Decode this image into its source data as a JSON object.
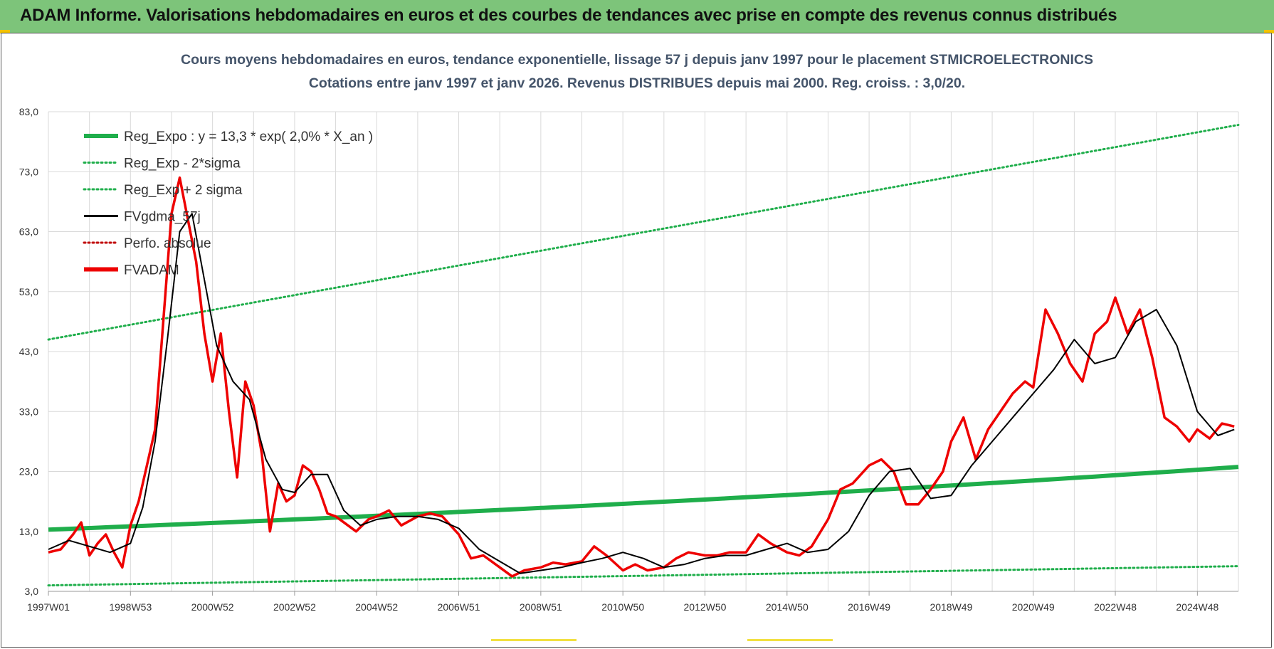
{
  "header": {
    "title": "ADAM Informe. Valorisations hebdomadaires en euros et des courbes de tendances avec prise en compte des revenus connus distribués"
  },
  "colors": {
    "banner": "#7dc47a",
    "reg_expo": "#1fae4b",
    "sigma": "#1fae4b",
    "fvgdma": "#000000",
    "perfo": "#c00000",
    "fvadam": "#ee0000",
    "title_text": "#44546a"
  },
  "chart_data": {
    "type": "line",
    "title_line1": "Cours moyens hebdomadaires en euros, tendance exponentielle, lissage 57 j depuis janv 1997 pour le placement STMICROELECTRONICS",
    "title_line2": "Cotations entre janv 1997 et janv 2026. Revenus DISTRIBUES depuis mai 2000. Reg. croiss. : 3,0/20.",
    "x_range": [
      1997.0,
      2026.0
    ],
    "x_ticks": [
      {
        "label": "1997W01",
        "x": 1997.0
      },
      {
        "label": "1998W53",
        "x": 1999.0
      },
      {
        "label": "2000W52",
        "x": 2001.0
      },
      {
        "label": "2002W52",
        "x": 2003.0
      },
      {
        "label": "2004W52",
        "x": 2005.0
      },
      {
        "label": "2006W51",
        "x": 2007.0
      },
      {
        "label": "2008W51",
        "x": 2009.0
      },
      {
        "label": "2010W50",
        "x": 2011.0
      },
      {
        "label": "2012W50",
        "x": 2013.0
      },
      {
        "label": "2014W50",
        "x": 2015.0
      },
      {
        "label": "2016W49",
        "x": 2017.0
      },
      {
        "label": "2018W49",
        "x": 2019.0
      },
      {
        "label": "2020W49",
        "x": 2021.0
      },
      {
        "label": "2022W48",
        "x": 2023.0
      },
      {
        "label": "2024W48",
        "x": 2025.0
      }
    ],
    "ylim": [
      3.0,
      83.0
    ],
    "y_ticks": [
      "3,0",
      "13,0",
      "23,0",
      "33,0",
      "43,0",
      "53,0",
      "63,0",
      "73,0",
      "83,0"
    ],
    "grid": true,
    "legend_position": "top-left",
    "legend": [
      {
        "label": "Reg_Expo : y = 13,3 * exp( 2,0% *  X_an )",
        "style": "solid-thick",
        "color": "#1fae4b"
      },
      {
        "label": "Reg_Exp - 2*sigma",
        "style": "dotted",
        "color": "#1fae4b"
      },
      {
        "label": "Reg_Exp + 2 sigma",
        "style": "dotted",
        "color": "#1fae4b"
      },
      {
        "label": "FVgdma_57j",
        "style": "solid",
        "color": "#000000"
      },
      {
        "label": "Perfo. absolue",
        "style": "dotted",
        "color": "#c00000"
      },
      {
        "label": "FVADAM",
        "style": "solid-thick",
        "color": "#ee0000"
      }
    ],
    "reg_expo": {
      "a": 13.3,
      "rate": 0.02,
      "x0": 1997.0
    },
    "reg_minus_2sigma": {
      "x": [
        1997.0,
        2026.0
      ],
      "y": [
        4.0,
        7.2
      ]
    },
    "reg_plus_2sigma": {
      "x": [
        1997.0,
        2026.0
      ],
      "y": [
        45.0,
        80.8
      ]
    },
    "fvadam": {
      "x": [
        1997.0,
        1997.3,
        1997.6,
        1997.8,
        1998.0,
        1998.2,
        1998.4,
        1998.6,
        1998.8,
        1999.0,
        1999.2,
        1999.4,
        1999.6,
        1999.8,
        2000.0,
        2000.2,
        2000.4,
        2000.6,
        2000.8,
        2001.0,
        2001.2,
        2001.4,
        2001.6,
        2001.8,
        2002.0,
        2002.2,
        2002.4,
        2002.6,
        2002.8,
        2003.0,
        2003.2,
        2003.4,
        2003.6,
        2003.8,
        2004.0,
        2004.2,
        2004.5,
        2004.8,
        2005.0,
        2005.3,
        2005.6,
        2006.0,
        2006.3,
        2006.6,
        2007.0,
        2007.3,
        2007.6,
        2008.0,
        2008.3,
        2008.6,
        2009.0,
        2009.3,
        2009.6,
        2010.0,
        2010.3,
        2010.6,
        2011.0,
        2011.3,
        2011.6,
        2012.0,
        2012.3,
        2012.6,
        2013.0,
        2013.3,
        2013.6,
        2014.0,
        2014.3,
        2014.6,
        2015.0,
        2015.3,
        2015.6,
        2016.0,
        2016.3,
        2016.6,
        2017.0,
        2017.3,
        2017.6,
        2017.9,
        2018.2,
        2018.5,
        2018.8,
        2019.0,
        2019.3,
        2019.6,
        2019.9,
        2020.2,
        2020.5,
        2020.8,
        2021.0,
        2021.3,
        2021.6,
        2021.9,
        2022.2,
        2022.5,
        2022.8,
        2023.0,
        2023.3,
        2023.6,
        2023.9,
        2024.2,
        2024.5,
        2024.8,
        2025.0,
        2025.3,
        2025.6,
        2025.9
      ],
      "y": [
        9.5,
        10.0,
        12.5,
        14.5,
        9.0,
        11.0,
        12.5,
        9.5,
        7.0,
        14.0,
        18.0,
        24.0,
        30.0,
        48.0,
        66.0,
        72.0,
        65.0,
        58.0,
        46.0,
        38.0,
        46.0,
        33.0,
        22.0,
        38.0,
        34.0,
        26.0,
        13.0,
        21.0,
        18.0,
        19.0,
        24.0,
        23.0,
        20.0,
        16.0,
        15.5,
        14.5,
        13.0,
        15.0,
        15.5,
        16.5,
        14.0,
        15.5,
        16.0,
        15.5,
        12.5,
        8.5,
        9.0,
        7.0,
        5.5,
        6.5,
        7.0,
        7.8,
        7.5,
        8.0,
        10.5,
        9.0,
        6.5,
        7.5,
        6.5,
        7.0,
        8.5,
        9.5,
        9.0,
        9.0,
        9.5,
        9.5,
        12.5,
        11.0,
        9.5,
        9.0,
        10.5,
        15.0,
        20.0,
        21.0,
        24.0,
        25.0,
        23.0,
        17.5,
        17.5,
        20.0,
        23.0,
        28.0,
        32.0,
        25.0,
        30.0,
        33.0,
        36.0,
        38.0,
        37.0,
        50.0,
        46.0,
        41.0,
        38.0,
        46.0,
        48.0,
        52.0,
        46.0,
        50.0,
        42.0,
        32.0,
        30.5,
        28.0,
        30.0,
        28.5,
        31.0,
        30.5
      ]
    },
    "fvgdma_57j": {
      "x": [
        1997.0,
        1997.5,
        1998.0,
        1998.5,
        1999.0,
        1999.3,
        1999.6,
        1999.9,
        2000.2,
        2000.5,
        2000.8,
        2001.1,
        2001.5,
        2001.9,
        2002.3,
        2002.7,
        2003.0,
        2003.4,
        2003.8,
        2004.2,
        2004.6,
        2005.0,
        2005.5,
        2006.0,
        2006.5,
        2007.0,
        2007.5,
        2008.0,
        2008.5,
        2009.0,
        2009.5,
        2010.0,
        2010.5,
        2011.0,
        2011.5,
        2012.0,
        2012.5,
        2013.0,
        2013.5,
        2014.0,
        2014.5,
        2015.0,
        2015.5,
        2016.0,
        2016.5,
        2017.0,
        2017.5,
        2018.0,
        2018.5,
        2019.0,
        2019.5,
        2020.0,
        2020.5,
        2021.0,
        2021.5,
        2022.0,
        2022.5,
        2023.0,
        2023.5,
        2024.0,
        2024.5,
        2025.0,
        2025.5,
        2025.9
      ],
      "y": [
        10.0,
        11.5,
        10.5,
        9.5,
        11.0,
        17.0,
        28.0,
        45.0,
        63.0,
        66.0,
        55.0,
        44.0,
        38.0,
        35.0,
        25.0,
        20.0,
        19.5,
        22.5,
        22.5,
        16.5,
        14.0,
        15.0,
        15.5,
        15.5,
        15.0,
        13.5,
        10.0,
        8.0,
        6.0,
        6.5,
        7.0,
        7.8,
        8.5,
        9.5,
        8.5,
        7.0,
        7.5,
        8.5,
        9.0,
        9.0,
        10.0,
        11.0,
        9.5,
        10.0,
        13.0,
        19.0,
        23.0,
        23.5,
        18.5,
        19.0,
        24.0,
        28.0,
        32.0,
        36.0,
        40.0,
        45.0,
        41.0,
        42.0,
        48.0,
        50.0,
        44.0,
        33.0,
        29.0,
        30.0
      ]
    }
  }
}
